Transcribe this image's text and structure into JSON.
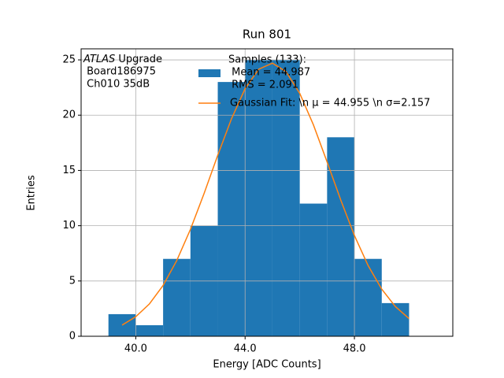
{
  "chart_data": {
    "type": "histogram",
    "title": "Run 801",
    "xlabel": "Energy [ADC Counts]",
    "ylabel": "Entries",
    "bins": [
      39,
      40,
      41,
      42,
      43,
      44,
      45,
      46,
      47,
      48,
      49,
      50
    ],
    "counts": [
      2,
      1,
      7,
      10,
      23,
      25,
      25,
      12,
      18,
      7,
      3
    ],
    "color": "#1f77b4",
    "hist_label": [
      "Samples (133):",
      " Mean = 44.987",
      " RMS = 2.091"
    ],
    "fit": {
      "name": "Gaussian Fit: \\n μ = 44.955 \\n σ=2.157",
      "color": "#ff7f0e",
      "x": [
        39.5,
        40,
        40.5,
        41,
        41.5,
        42,
        42.5,
        43,
        43.5,
        44,
        44.5,
        45,
        45.5,
        46,
        46.5,
        47,
        47.5,
        48,
        48.5,
        49,
        49.5,
        50
      ],
      "values": [
        1.01,
        1.77,
        2.93,
        4.6,
        6.85,
        9.67,
        12.92,
        16.38,
        19.66,
        22.4,
        24.16,
        24.7,
        23.93,
        21.97,
        19.12,
        15.77,
        12.32,
        9.11,
        6.4,
        4.26,
        2.68,
        1.6
      ]
    },
    "annotation": [
      "ATLAS Upgrade",
      " Board186975",
      " Ch010 35dB"
    ],
    "xlim": [
      38,
      51.6
    ],
    "ylim": [
      0,
      26
    ],
    "xticks": [
      {
        "value": 40,
        "label": "40.0"
      },
      {
        "value": 44,
        "label": "44.0"
      },
      {
        "value": 48,
        "label": "48.0"
      }
    ],
    "yticks": [
      0,
      5,
      10,
      15,
      20,
      25
    ],
    "grid": true
  }
}
